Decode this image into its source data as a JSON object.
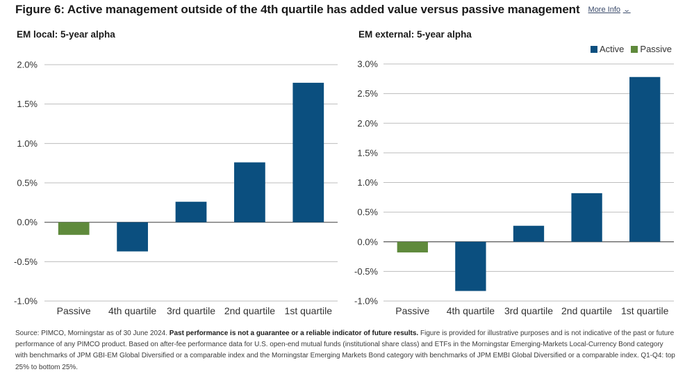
{
  "figure": {
    "title": "Figure 6: Active management outside of the 4th quartile has added value versus passive management",
    "more_info_label": "More Info"
  },
  "legend": {
    "active_label": "Active",
    "passive_label": "Passive",
    "placement": "top-right"
  },
  "colors": {
    "active": "#0b4f7f",
    "passive": "#5f8a3c",
    "grid": "#bdbdbd",
    "zero_line": "#555555"
  },
  "chart_data": [
    {
      "type": "bar",
      "title": "EM local: 5-year alpha",
      "categories": [
        "Passive",
        "4th quartile",
        "3rd quartile",
        "2nd quartile",
        "1st quartile"
      ],
      "series": [
        {
          "name": "Active",
          "values": [
            null,
            -0.37,
            0.26,
            0.76,
            1.77
          ]
        },
        {
          "name": "Passive",
          "values": [
            -0.16,
            null,
            null,
            null,
            null
          ]
        }
      ],
      "ylim": [
        -1.0,
        2.0
      ],
      "yticks": [
        -1.0,
        -0.5,
        0.0,
        0.5,
        1.0,
        1.5,
        2.0
      ],
      "ytick_labels": [
        "-1.0%",
        "-0.5%",
        "0.0%",
        "0.5%",
        "1.0%",
        "1.5%",
        "2.0%"
      ],
      "xlabel": "",
      "ylabel": "",
      "grid": true
    },
    {
      "type": "bar",
      "title": "EM external: 5-year alpha",
      "categories": [
        "Passive",
        "4th quartile",
        "3rd quartile",
        "2nd quartile",
        "1st quartile"
      ],
      "series": [
        {
          "name": "Active",
          "values": [
            null,
            -0.83,
            0.27,
            0.82,
            2.78
          ]
        },
        {
          "name": "Passive",
          "values": [
            -0.18,
            null,
            null,
            null,
            null
          ]
        }
      ],
      "ylim": [
        -1.0,
        3.0
      ],
      "yticks": [
        -1.0,
        -0.5,
        0.0,
        0.5,
        1.0,
        1.5,
        2.0,
        2.5,
        3.0
      ],
      "ytick_labels": [
        "-1.0%",
        "-0.5%",
        "0.0%",
        "0.5%",
        "1.0%",
        "1.5%",
        "2.0%",
        "2.5%",
        "3.0%"
      ],
      "xlabel": "",
      "ylabel": "",
      "grid": true
    }
  ],
  "footnote": {
    "part1": "Source: PIMCO, Morningstar as of 30 June 2024. ",
    "bold": "Past performance is not a guarantee or a reliable indicator of future results.",
    "part2": " Figure is provided for illustrative purposes and is not indicative of the past or future performance of any PIMCO product. Based on after-fee performance data for U.S. open-end mutual funds (institutional share class) and ETFs in the Morningstar Emerging-Markets Local-Currency Bond category with benchmarks of JPM GBI-EM Global Diversified or a comparable index and the Morningstar Emerging Markets Bond category with benchmarks of JPM EMBI Global Diversified or a comparable index. Q1-Q4: top 25% to bottom 25%."
  }
}
